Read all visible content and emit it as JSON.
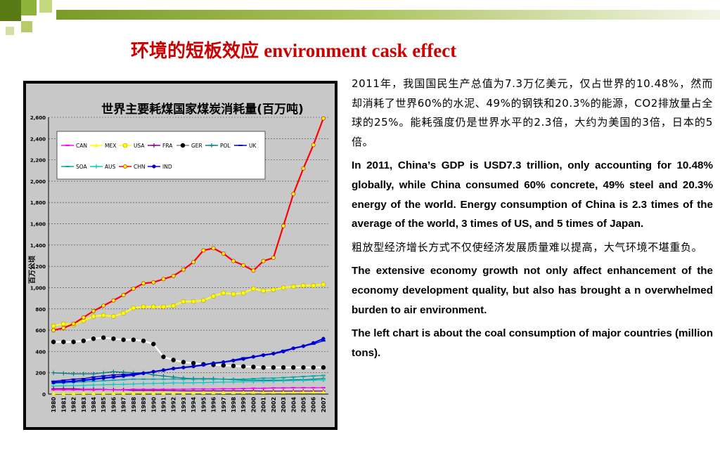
{
  "slide": {
    "title_cn": "环境的短板效应",
    "title_en": "environment cask effect",
    "paragraphs": [
      {
        "lang": "cn",
        "text": "2011年，我国国民生产总值为7.3万亿美元，仅占世界的10.48%，然而却消耗了世界60%的水泥、49%的钢铁和20.3%的能源，CO2排放量占全球的25%。能耗强度仍是世界水平的2.3倍，大约为美国的3倍，日本的5倍。"
      },
      {
        "lang": "en",
        "text": "In 2011, China’s GDP is USD7.3 trillion, only accounting for 10.48% globally, while China consumed 60% concrete, 49% steel and 20.3% energy of the world. Energy consumption of China is 2.3 times of the average of the world, 3 times of US, and 5 times of Japan."
      },
      {
        "lang": "cn",
        "text": "粗放型经济增长方式不仅使经济发展质量难以提高，大气环境不堪重负。"
      },
      {
        "lang": "en",
        "text": "The extensive economy growth not only affect enhancement of the economy development quality, but also has brought a n overwhelmed burden to air environment."
      },
      {
        "lang": "en",
        "text": "The left chart is about the coal consumption of major countries (million tons)."
      }
    ]
  },
  "colors": {
    "title": "#cc0000",
    "plot_bg": "#c8c8c8",
    "frame": "#000000"
  },
  "chart_data": {
    "type": "line",
    "title": "世界主要耗煤国家煤炭消耗量(百万吨)",
    "ylabel": "百万公顷",
    "xlabel": "",
    "ylim": [
      0,
      2600
    ],
    "yticks": [
      0,
      200,
      400,
      600,
      800,
      1000,
      1200,
      1400,
      1600,
      1800,
      2000,
      2200,
      2400,
      2600
    ],
    "ytick_labels": [
      "0",
      "200",
      "400",
      "600",
      "800",
      "1,000",
      "1,200",
      "1,400",
      "1,600",
      "1,800",
      "2,000",
      "2,200",
      "2,400",
      "2,600"
    ],
    "x": [
      "1980",
      "1981",
      "1982",
      "1983",
      "1984",
      "1985",
      "1986",
      "1987",
      "1988",
      "1989",
      "1990",
      "1991",
      "1992",
      "1993",
      "1994",
      "1995",
      "1996",
      "1997",
      "1998",
      "1999",
      "2000",
      "2001",
      "2002",
      "2003",
      "2004",
      "2005",
      "2006",
      "2007"
    ],
    "grid": true,
    "legend": "top-left",
    "series": [
      {
        "name": "CAN",
        "color": "#ff00ff",
        "marker": "dash",
        "values": [
          40,
          40,
          40,
          40,
          40,
          42,
          42,
          42,
          45,
          45,
          45,
          45,
          45,
          45,
          48,
          48,
          48,
          50,
          50,
          52,
          55,
          55,
          58,
          58,
          60,
          60,
          60,
          60
        ]
      },
      {
        "name": "MEX",
        "color": "#ffff00",
        "marker": "triangle",
        "values": [
          5,
          5,
          5,
          6,
          6,
          6,
          7,
          7,
          8,
          8,
          8,
          9,
          10,
          10,
          11,
          12,
          12,
          13,
          13,
          14,
          15,
          15,
          16,
          16,
          17,
          18,
          18,
          19
        ]
      },
      {
        "name": "USA",
        "color": "#ffff00",
        "marker": "circle",
        "values": [
          640,
          660,
          650,
          690,
          730,
          740,
          730,
          760,
          810,
          820,
          820,
          820,
          830,
          870,
          870,
          880,
          920,
          950,
          940,
          950,
          990,
          970,
          980,
          1000,
          1010,
          1020,
          1020,
          1030
        ]
      },
      {
        "name": "FRA",
        "color": "#800080",
        "marker": "plus",
        "values": [
          50,
          50,
          50,
          45,
          45,
          45,
          40,
          40,
          35,
          35,
          35,
          35,
          33,
          30,
          30,
          30,
          30,
          30,
          30,
          30,
          30,
          28,
          28,
          28,
          28,
          28,
          28,
          28
        ]
      },
      {
        "name": "GER",
        "color": "#ffffff",
        "marker": "circle-black",
        "values": [
          490,
          490,
          490,
          500,
          520,
          530,
          520,
          510,
          510,
          500,
          470,
          350,
          320,
          300,
          290,
          280,
          275,
          270,
          265,
          260,
          255,
          250,
          250,
          250,
          250,
          250,
          250,
          250
        ]
      },
      {
        "name": "POL",
        "color": "#008080",
        "marker": "plus",
        "values": [
          200,
          195,
          190,
          190,
          190,
          200,
          210,
          205,
          200,
          200,
          180,
          170,
          160,
          150,
          145,
          145,
          145,
          140,
          135,
          130,
          130,
          130,
          130,
          130,
          135,
          135,
          140,
          145
        ]
      },
      {
        "name": "UK",
        "color": "#0000cc",
        "marker": "dash",
        "values": [
          120,
          130,
          140,
          145,
          160,
          170,
          180,
          185,
          190,
          200,
          210,
          220,
          240,
          250,
          260,
          270,
          290,
          300,
          320,
          340,
          350,
          370,
          380,
          410,
          430,
          450,
          470,
          500
        ]
      },
      {
        "name": "SOA",
        "color": "#00aaaa",
        "marker": "dash",
        "values": [
          100,
          105,
          110,
          115,
          120,
          125,
          130,
          135,
          140,
          140,
          140,
          140,
          142,
          140,
          140,
          140,
          140,
          140,
          140,
          140,
          145,
          150,
          150,
          155,
          160,
          165,
          170,
          175
        ]
      },
      {
        "name": "AUS",
        "color": "#00cccc",
        "marker": "plus",
        "values": [
          75,
          78,
          80,
          82,
          85,
          88,
          90,
          92,
          95,
          98,
          100,
          102,
          104,
          105,
          106,
          108,
          110,
          112,
          114,
          116,
          118,
          120,
          122,
          124,
          126,
          128,
          130,
          132
        ]
      },
      {
        "name": "CHN",
        "color": "#ff0000",
        "marker": "circle-yellow",
        "values": [
          600,
          620,
          660,
          720,
          780,
          830,
          880,
          930,
          990,
          1040,
          1050,
          1080,
          1110,
          1170,
          1240,
          1350,
          1370,
          1320,
          1250,
          1210,
          1160,
          1250,
          1280,
          1580,
          1880,
          2120,
          2340,
          2590
        ]
      },
      {
        "name": "IND",
        "color": "#0000ff",
        "marker": "circle-blue",
        "values": [
          110,
          115,
          120,
          130,
          140,
          150,
          160,
          170,
          180,
          195,
          210,
          225,
          240,
          250,
          260,
          275,
          290,
          300,
          315,
          330,
          350,
          365,
          380,
          400,
          430,
          450,
          480,
          520
        ]
      }
    ]
  }
}
